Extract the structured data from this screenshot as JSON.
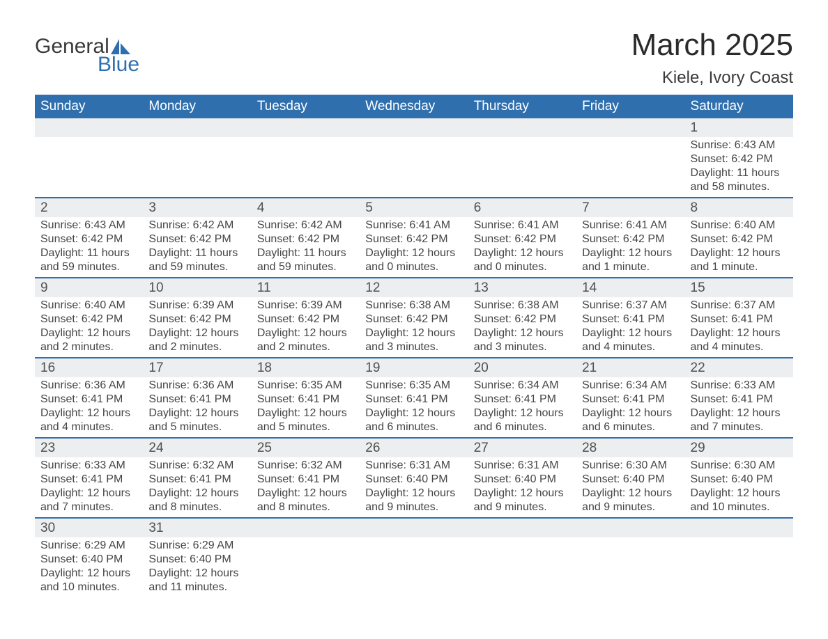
{
  "logo": {
    "line1": "General",
    "line2": "Blue"
  },
  "title": "March 2025",
  "location": "Kiele, Ivory Coast",
  "colors": {
    "brand_blue": "#2f6fae",
    "header_bg": "#2f6fae",
    "header_fg": "#ffffff",
    "daynum_bg": "#eceef0",
    "text": "#404040",
    "border": "#2f6fae"
  },
  "weekdays": [
    "Sunday",
    "Monday",
    "Tuesday",
    "Wednesday",
    "Thursday",
    "Friday",
    "Saturday"
  ],
  "weeks": [
    [
      null,
      null,
      null,
      null,
      null,
      null,
      {
        "d": "1",
        "sr": "Sunrise: 6:43 AM",
        "ss": "Sunset: 6:42 PM",
        "dl": "Daylight: 11 hours and 58 minutes."
      }
    ],
    [
      {
        "d": "2",
        "sr": "Sunrise: 6:43 AM",
        "ss": "Sunset: 6:42 PM",
        "dl": "Daylight: 11 hours and 59 minutes."
      },
      {
        "d": "3",
        "sr": "Sunrise: 6:42 AM",
        "ss": "Sunset: 6:42 PM",
        "dl": "Daylight: 11 hours and 59 minutes."
      },
      {
        "d": "4",
        "sr": "Sunrise: 6:42 AM",
        "ss": "Sunset: 6:42 PM",
        "dl": "Daylight: 11 hours and 59 minutes."
      },
      {
        "d": "5",
        "sr": "Sunrise: 6:41 AM",
        "ss": "Sunset: 6:42 PM",
        "dl": "Daylight: 12 hours and 0 minutes."
      },
      {
        "d": "6",
        "sr": "Sunrise: 6:41 AM",
        "ss": "Sunset: 6:42 PM",
        "dl": "Daylight: 12 hours and 0 minutes."
      },
      {
        "d": "7",
        "sr": "Sunrise: 6:41 AM",
        "ss": "Sunset: 6:42 PM",
        "dl": "Daylight: 12 hours and 1 minute."
      },
      {
        "d": "8",
        "sr": "Sunrise: 6:40 AM",
        "ss": "Sunset: 6:42 PM",
        "dl": "Daylight: 12 hours and 1 minute."
      }
    ],
    [
      {
        "d": "9",
        "sr": "Sunrise: 6:40 AM",
        "ss": "Sunset: 6:42 PM",
        "dl": "Daylight: 12 hours and 2 minutes."
      },
      {
        "d": "10",
        "sr": "Sunrise: 6:39 AM",
        "ss": "Sunset: 6:42 PM",
        "dl": "Daylight: 12 hours and 2 minutes."
      },
      {
        "d": "11",
        "sr": "Sunrise: 6:39 AM",
        "ss": "Sunset: 6:42 PM",
        "dl": "Daylight: 12 hours and 2 minutes."
      },
      {
        "d": "12",
        "sr": "Sunrise: 6:38 AM",
        "ss": "Sunset: 6:42 PM",
        "dl": "Daylight: 12 hours and 3 minutes."
      },
      {
        "d": "13",
        "sr": "Sunrise: 6:38 AM",
        "ss": "Sunset: 6:42 PM",
        "dl": "Daylight: 12 hours and 3 minutes."
      },
      {
        "d": "14",
        "sr": "Sunrise: 6:37 AM",
        "ss": "Sunset: 6:41 PM",
        "dl": "Daylight: 12 hours and 4 minutes."
      },
      {
        "d": "15",
        "sr": "Sunrise: 6:37 AM",
        "ss": "Sunset: 6:41 PM",
        "dl": "Daylight: 12 hours and 4 minutes."
      }
    ],
    [
      {
        "d": "16",
        "sr": "Sunrise: 6:36 AM",
        "ss": "Sunset: 6:41 PM",
        "dl": "Daylight: 12 hours and 4 minutes."
      },
      {
        "d": "17",
        "sr": "Sunrise: 6:36 AM",
        "ss": "Sunset: 6:41 PM",
        "dl": "Daylight: 12 hours and 5 minutes."
      },
      {
        "d": "18",
        "sr": "Sunrise: 6:35 AM",
        "ss": "Sunset: 6:41 PM",
        "dl": "Daylight: 12 hours and 5 minutes."
      },
      {
        "d": "19",
        "sr": "Sunrise: 6:35 AM",
        "ss": "Sunset: 6:41 PM",
        "dl": "Daylight: 12 hours and 6 minutes."
      },
      {
        "d": "20",
        "sr": "Sunrise: 6:34 AM",
        "ss": "Sunset: 6:41 PM",
        "dl": "Daylight: 12 hours and 6 minutes."
      },
      {
        "d": "21",
        "sr": "Sunrise: 6:34 AM",
        "ss": "Sunset: 6:41 PM",
        "dl": "Daylight: 12 hours and 6 minutes."
      },
      {
        "d": "22",
        "sr": "Sunrise: 6:33 AM",
        "ss": "Sunset: 6:41 PM",
        "dl": "Daylight: 12 hours and 7 minutes."
      }
    ],
    [
      {
        "d": "23",
        "sr": "Sunrise: 6:33 AM",
        "ss": "Sunset: 6:41 PM",
        "dl": "Daylight: 12 hours and 7 minutes."
      },
      {
        "d": "24",
        "sr": "Sunrise: 6:32 AM",
        "ss": "Sunset: 6:41 PM",
        "dl": "Daylight: 12 hours and 8 minutes."
      },
      {
        "d": "25",
        "sr": "Sunrise: 6:32 AM",
        "ss": "Sunset: 6:41 PM",
        "dl": "Daylight: 12 hours and 8 minutes."
      },
      {
        "d": "26",
        "sr": "Sunrise: 6:31 AM",
        "ss": "Sunset: 6:40 PM",
        "dl": "Daylight: 12 hours and 9 minutes."
      },
      {
        "d": "27",
        "sr": "Sunrise: 6:31 AM",
        "ss": "Sunset: 6:40 PM",
        "dl": "Daylight: 12 hours and 9 minutes."
      },
      {
        "d": "28",
        "sr": "Sunrise: 6:30 AM",
        "ss": "Sunset: 6:40 PM",
        "dl": "Daylight: 12 hours and 9 minutes."
      },
      {
        "d": "29",
        "sr": "Sunrise: 6:30 AM",
        "ss": "Sunset: 6:40 PM",
        "dl": "Daylight: 12 hours and 10 minutes."
      }
    ],
    [
      {
        "d": "30",
        "sr": "Sunrise: 6:29 AM",
        "ss": "Sunset: 6:40 PM",
        "dl": "Daylight: 12 hours and 10 minutes."
      },
      {
        "d": "31",
        "sr": "Sunrise: 6:29 AM",
        "ss": "Sunset: 6:40 PM",
        "dl": "Daylight: 12 hours and 11 minutes."
      },
      null,
      null,
      null,
      null,
      null
    ]
  ]
}
